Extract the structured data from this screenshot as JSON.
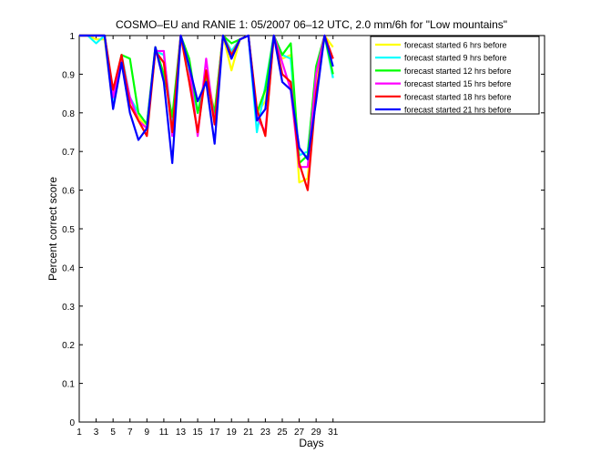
{
  "chart_data": {
    "type": "line",
    "title": "COSMO–EU and RANIE 1: 05/2007 06–12 UTC, 2.0 mm/6h for \"Low mountains\"",
    "xlabel": "Days",
    "ylabel": "Percent correct score",
    "xlim": [
      1,
      56
    ],
    "ylim": [
      0,
      1
    ],
    "x_ticks": [
      1,
      3,
      5,
      7,
      9,
      11,
      13,
      15,
      17,
      19,
      21,
      23,
      25,
      27,
      29,
      31
    ],
    "y_ticks": [
      0,
      0.1,
      0.2,
      0.3,
      0.4,
      0.5,
      0.6,
      0.7,
      0.8,
      0.9,
      1
    ],
    "grid": false,
    "legend_position": "top-right",
    "x": [
      1,
      2,
      3,
      4,
      5,
      6,
      7,
      8,
      9,
      10,
      11,
      12,
      13,
      14,
      15,
      16,
      17,
      18,
      19,
      20,
      21,
      22,
      23,
      24,
      25,
      26,
      27,
      28,
      29,
      30,
      31
    ],
    "series": [
      {
        "name": "forecast started 6 hrs before",
        "color": "#ffff00",
        "values": [
          1,
          1,
          0.99,
          0.99,
          0.82,
          0.94,
          0.82,
          0.79,
          0.76,
          0.96,
          0.95,
          0.76,
          1,
          0.91,
          0.8,
          0.91,
          0.8,
          1,
          0.91,
          0.99,
          1,
          0.8,
          0.83,
          0.99,
          0.94,
          0.95,
          0.62,
          0.63,
          0.89,
          1,
          0.97
        ]
      },
      {
        "name": "forecast started 9 hrs before",
        "color": "#00ffff",
        "values": [
          1,
          1,
          0.98,
          1,
          0.82,
          0.95,
          0.84,
          0.8,
          0.77,
          0.96,
          0.95,
          0.77,
          1,
          0.91,
          0.8,
          0.9,
          0.79,
          1,
          0.96,
          0.99,
          1,
          0.75,
          0.87,
          1,
          0.95,
          0.94,
          0.69,
          0.7,
          0.9,
          1,
          0.89
        ]
      },
      {
        "name": "forecast started 12 hrs before",
        "color": "#00ff00",
        "values": [
          1,
          1,
          1,
          1,
          0.85,
          0.95,
          0.94,
          0.8,
          0.77,
          0.97,
          0.9,
          0.79,
          1,
          0.94,
          0.8,
          0.89,
          0.8,
          1,
          0.98,
          0.99,
          1,
          0.8,
          0.86,
          1,
          0.95,
          0.98,
          0.67,
          0.69,
          0.92,
          1,
          0.9
        ]
      },
      {
        "name": "forecast started 15 hrs before",
        "color": "#ff00ff",
        "values": [
          1,
          1,
          1,
          1,
          0.84,
          0.94,
          0.84,
          0.78,
          0.76,
          0.96,
          0.96,
          0.74,
          1,
          0.92,
          0.74,
          0.94,
          0.77,
          1,
          0.94,
          0.99,
          1,
          0.79,
          0.75,
          1,
          0.93,
          0.86,
          0.66,
          0.66,
          0.9,
          1,
          0.94
        ]
      },
      {
        "name": "forecast started 18 hrs before",
        "color": "#ff0000",
        "values": [
          1,
          1,
          1,
          1,
          0.86,
          0.95,
          0.82,
          0.78,
          0.74,
          0.96,
          0.93,
          0.75,
          1,
          0.88,
          0.75,
          0.91,
          0.77,
          1,
          0.95,
          0.99,
          1,
          0.81,
          0.74,
          1,
          0.9,
          0.88,
          0.67,
          0.6,
          0.85,
          1,
          0.94
        ]
      },
      {
        "name": "forecast started 21 hrs before",
        "color": "#0000ff",
        "values": [
          1,
          1,
          1,
          1,
          0.81,
          0.93,
          0.8,
          0.73,
          0.76,
          0.97,
          0.88,
          0.67,
          1,
          0.92,
          0.83,
          0.88,
          0.72,
          1,
          0.94,
          0.99,
          1,
          0.78,
          0.81,
          1,
          0.88,
          0.86,
          0.71,
          0.68,
          0.83,
          1,
          0.92
        ]
      }
    ]
  }
}
